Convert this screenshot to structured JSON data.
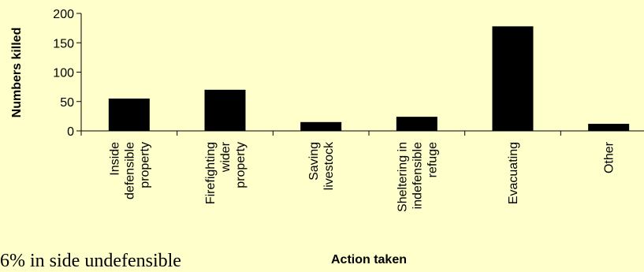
{
  "chart_data": {
    "type": "bar",
    "categories": [
      "Inside defensible property",
      "Firefighting wider property",
      "Saving livestock",
      "Sheltering in indefensible refuge",
      "Evacuating",
      "Other"
    ],
    "category_lines": [
      [
        "Inside",
        "defensible",
        "property"
      ],
      [
        "Firefighting",
        "wider",
        "property"
      ],
      [
        "Saving",
        "livestock"
      ],
      [
        "Sheltering in",
        "indefensible",
        "refuge"
      ],
      [
        "Evacuating"
      ],
      [
        "Other"
      ]
    ],
    "values": [
      55,
      70,
      15,
      24,
      178,
      12
    ],
    "xlabel": "Action taken",
    "ylabel": "Numbers killed",
    "ylim": [
      0,
      200
    ],
    "yticks": [
      0,
      50,
      100,
      150,
      200
    ],
    "grid": false,
    "legend": "none",
    "bar_color": "#000000",
    "background_color": "#FFFFCC"
  },
  "stray_text": "6% in side undefensible"
}
